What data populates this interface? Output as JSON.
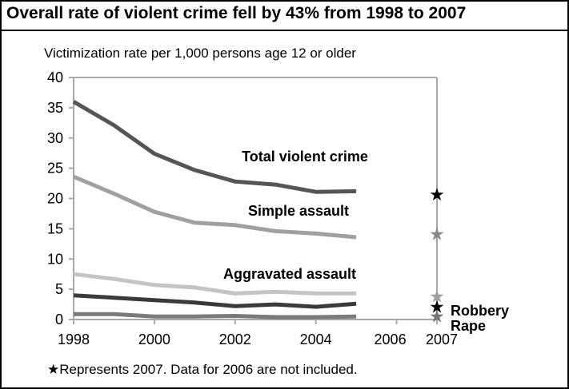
{
  "title": "Overall rate of violent crime fell by 43% from 1998 to 2007",
  "subtitle": "Victimization rate per 1,000 persons age 12 or older",
  "footnote": "★Represents 2007.  Data for 2006 are not included.",
  "colors": {
    "total": "#555555",
    "simple": "#a0a0a0",
    "aggravated": "#c4c4c4",
    "robbery": "#3a3a3a",
    "rape": "#7a7a7a",
    "axis": "#a8a8a8",
    "star_total": "#000000",
    "star_simple": "#888888",
    "star_aggravated": "#a0a0a0",
    "star_robbery": "#000000",
    "star_rape": "#777777"
  },
  "chart_data": {
    "type": "line",
    "x": [
      1998,
      1999,
      2000,
      2001,
      2002,
      2003,
      2004,
      2005
    ],
    "xticks": [
      "1998",
      "2000",
      "2002",
      "2004",
      "2006",
      "2007"
    ],
    "yticks": [
      "0",
      "5",
      "10",
      "15",
      "20",
      "25",
      "30",
      "35",
      "40"
    ],
    "ylim": [
      0,
      40
    ],
    "xlim": [
      1998,
      2007
    ],
    "series": [
      {
        "key": "total",
        "name": "Total violent crime",
        "values": [
          36.0,
          32.1,
          27.4,
          24.7,
          22.8,
          22.3,
          21.1,
          21.2
        ],
        "star_2007": 20.7
      },
      {
        "key": "simple",
        "name": "Simple assault",
        "values": [
          23.6,
          20.8,
          17.8,
          16.0,
          15.6,
          14.6,
          14.2,
          13.6
        ],
        "star_2007": 14.2
      },
      {
        "key": "aggravated",
        "name": "Aggravated assault",
        "values": [
          7.5,
          6.7,
          5.7,
          5.3,
          4.3,
          4.6,
          4.3,
          4.3
        ],
        "star_2007": 3.9
      },
      {
        "key": "robbery",
        "name": "Robbery",
        "values": [
          4.0,
          3.6,
          3.2,
          2.8,
          2.2,
          2.5,
          2.1,
          2.6
        ],
        "star_2007": 2.2
      },
      {
        "key": "rape",
        "name": "Rape",
        "values": [
          0.9,
          0.9,
          0.5,
          0.5,
          0.6,
          0.4,
          0.4,
          0.5
        ],
        "star_2007": 0.6
      }
    ]
  }
}
